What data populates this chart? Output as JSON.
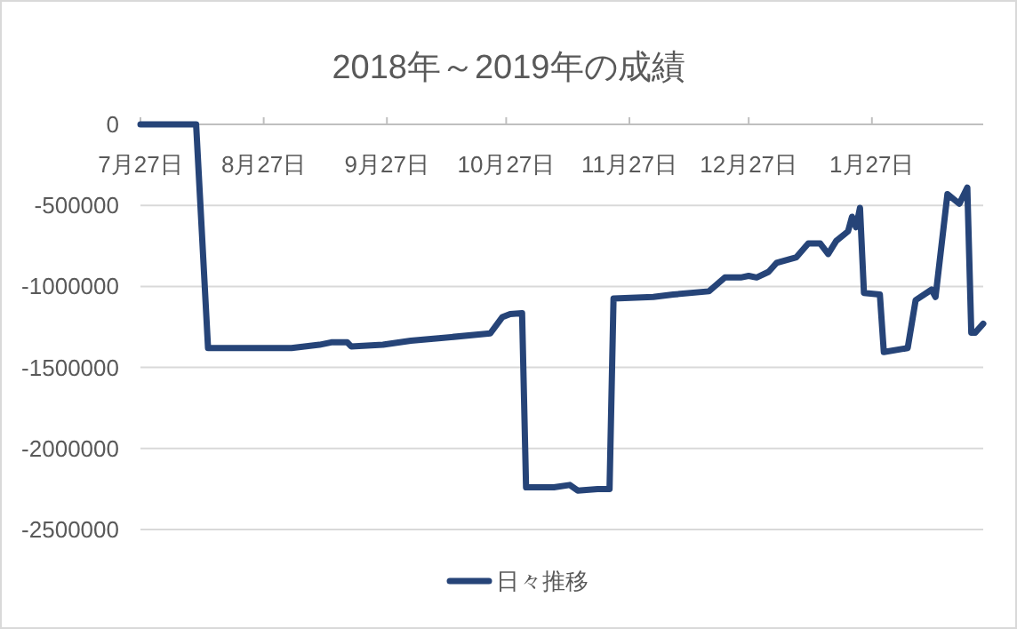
{
  "chart_data": {
    "type": "line",
    "title": "2018年～2019年の成績",
    "x": [
      "2018-07-27",
      "2018-08-10",
      "2018-08-13",
      "2018-09-03",
      "2018-09-10",
      "2018-09-13",
      "2018-09-17",
      "2018-09-18",
      "2018-09-26",
      "2018-10-03",
      "2018-10-10",
      "2018-10-23",
      "2018-10-26",
      "2018-10-28",
      "2018-10-31",
      "2018-11-01",
      "2018-11-08",
      "2018-11-12",
      "2018-11-14",
      "2018-11-19",
      "2018-11-22",
      "2018-11-23",
      "2018-12-03",
      "2018-12-08",
      "2018-12-17",
      "2018-12-21",
      "2018-12-25",
      "2018-12-27",
      "2018-12-29",
      "2019-01-01",
      "2019-01-03",
      "2019-01-08",
      "2019-01-11",
      "2019-01-14",
      "2019-01-16",
      "2019-01-18",
      "2019-01-21",
      "2019-01-22",
      "2019-01-23",
      "2019-01-24",
      "2019-01-25",
      "2019-01-29",
      "2019-01-30",
      "2019-02-05",
      "2019-02-07",
      "2019-02-11",
      "2019-02-12",
      "2019-02-15",
      "2019-02-18",
      "2019-02-20",
      "2019-02-21",
      "2019-02-22",
      "2019-02-24"
    ],
    "series": [
      {
        "name": "日々推移",
        "color": "#264478",
        "values": [
          0,
          0,
          -1380000,
          -1380000,
          -1360000,
          -1345000,
          -1345000,
          -1370000,
          -1360000,
          -1335000,
          -1320000,
          -1290000,
          -1190000,
          -1170000,
          -1165000,
          -2240000,
          -2240000,
          -2225000,
          -2260000,
          -2250000,
          -2250000,
          -1075000,
          -1065000,
          -1050000,
          -1030000,
          -945000,
          -945000,
          -935000,
          -945000,
          -910000,
          -855000,
          -820000,
          -735000,
          -735000,
          -800000,
          -720000,
          -660000,
          -570000,
          -635000,
          -515000,
          -1040000,
          -1050000,
          -1405000,
          -1380000,
          -1085000,
          -1020000,
          -1065000,
          -430000,
          -490000,
          -390000,
          -1285000,
          -1285000,
          -1230000
        ]
      }
    ],
    "xlim": [
      "2018-07-27",
      "2019-02-24"
    ],
    "xticks": [
      {
        "value": "2018-07-27",
        "label": "7月27日"
      },
      {
        "value": "2018-08-27",
        "label": "8月27日"
      },
      {
        "value": "2018-09-27",
        "label": "9月27日"
      },
      {
        "value": "2018-10-27",
        "label": "10月27日"
      },
      {
        "value": "2018-11-27",
        "label": "11月27日"
      },
      {
        "value": "2018-12-27",
        "label": "12月27日"
      },
      {
        "value": "2019-01-27",
        "label": "1月27日"
      }
    ],
    "ylim": [
      -2500000,
      0
    ],
    "yticks": [
      0,
      -500000,
      -1000000,
      -1500000,
      -2000000,
      -2500000
    ],
    "grid": "y",
    "legend": "bottom",
    "line_style": "solid"
  }
}
